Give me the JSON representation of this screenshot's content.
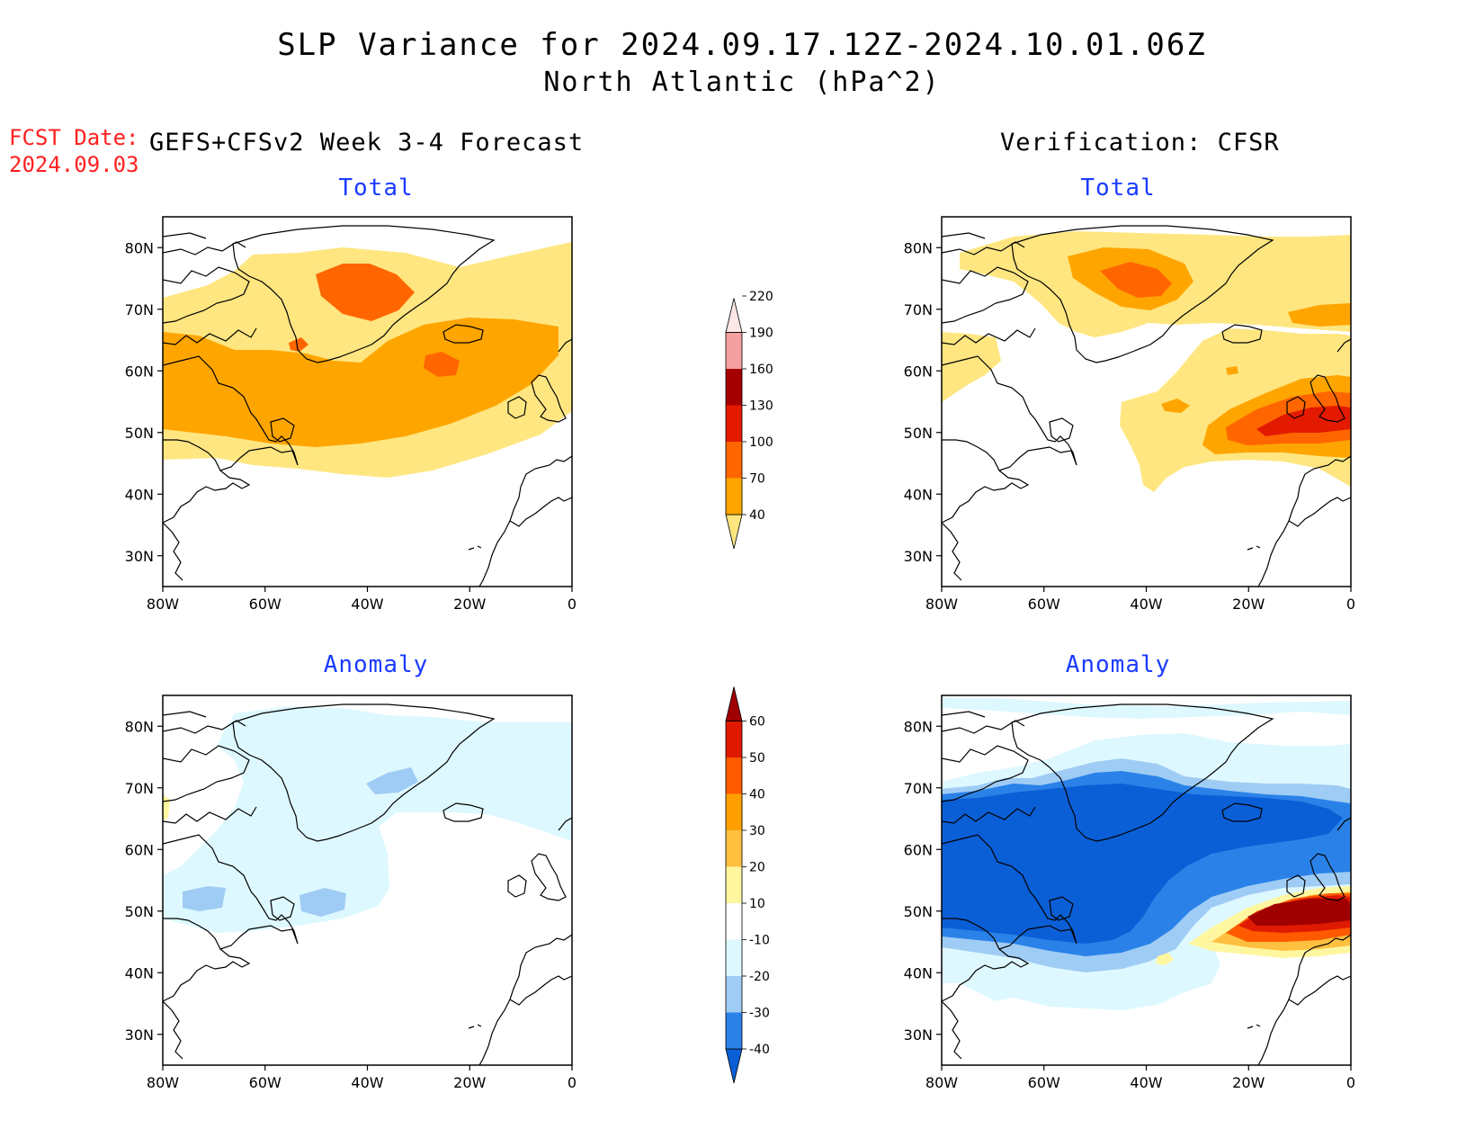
{
  "title": {
    "line1": "SLP Variance for 2024.09.17.12Z-2024.10.01.06Z",
    "line2": "North Atlantic (hPa^2)"
  },
  "fcst_date": {
    "label": "FCST Date:",
    "value": "2024.09.03"
  },
  "columns": {
    "left": "GEFS+CFSv2 Week 3-4 Forecast",
    "right": "Verification: CFSR"
  },
  "panels": {
    "total_label": "Total",
    "anomaly_label": "Anomaly"
  },
  "axes": {
    "lat_labels": [
      "30N",
      "40N",
      "50N",
      "60N",
      "70N",
      "80N"
    ],
    "lon_labels": [
      "80W",
      "60W",
      "40W",
      "20W",
      "0"
    ]
  },
  "total_colorbar": {
    "levels": [
      "40",
      "70",
      "100",
      "130",
      "160",
      "190",
      "220"
    ],
    "colors": [
      "#ffe680",
      "#ffa500",
      "#ff6600",
      "#e31a00",
      "#a50000",
      "#f4a0a0",
      "#fde6e6"
    ]
  },
  "anomaly_colorbar": {
    "levels": [
      "-40",
      "-30",
      "-20",
      "-10",
      "10",
      "20",
      "30",
      "40",
      "50",
      "60"
    ],
    "colors": [
      "#0a5fd6",
      "#2a82e8",
      "#9fccf5",
      "#def8ff",
      "#ffffff",
      "#fff6a0",
      "#ffc040",
      "#ffa000",
      "#ff5a00",
      "#e01a00",
      "#a00000"
    ]
  },
  "map_colors": {
    "total_40": "#ffe680",
    "total_70": "#ffa500",
    "total_100": "#ff6600",
    "total_130": "#e31a00",
    "anom_m10": "#def8ff",
    "anom_m20": "#9fccf5",
    "anom_m30": "#2a82e8",
    "anom_m40": "#0a5fd6",
    "anom_p10": "#fff6a0",
    "anom_p20": "#ffc040",
    "anom_p30": "#ffa000",
    "anom_p40": "#ff5a00",
    "anom_p50": "#e01a00",
    "anom_p60": "#a00000"
  }
}
